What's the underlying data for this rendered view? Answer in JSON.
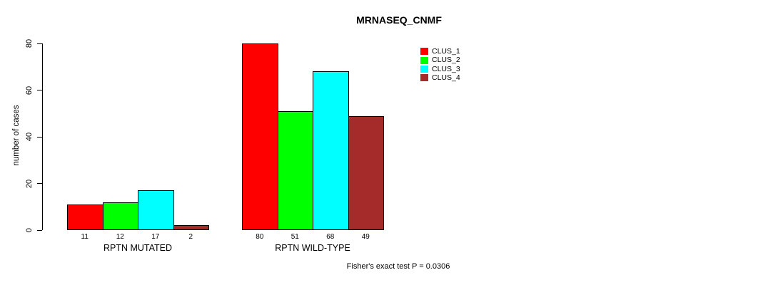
{
  "chart_data": {
    "type": "bar",
    "title": "MRNASEQ_CNMF",
    "ylabel": "number of cases",
    "xlabel": "",
    "categories": [
      "RPTN MUTATED",
      "RPTN WILD-TYPE"
    ],
    "series": [
      {
        "name": "CLUS_1",
        "color": "#ff0000",
        "values": [
          11,
          80
        ]
      },
      {
        "name": "CLUS_2",
        "color": "#00ff00",
        "values": [
          12,
          51
        ]
      },
      {
        "name": "CLUS_3",
        "color": "#00ffff",
        "values": [
          17,
          68
        ]
      },
      {
        "name": "CLUS_4",
        "color": "#a52a2a",
        "values": [
          2,
          49
        ]
      }
    ],
    "bar_value_labels": [
      [
        11,
        12,
        17,
        2
      ],
      [
        80,
        51,
        68,
        49
      ]
    ],
    "yticks": [
      0,
      20,
      40,
      60,
      80
    ],
    "ylim": [
      0,
      80
    ],
    "grid": false,
    "legend_position": "inside-top-right",
    "bar_border_color": "#000000",
    "annotation": "Fisher's exact test P = 0.0306"
  }
}
